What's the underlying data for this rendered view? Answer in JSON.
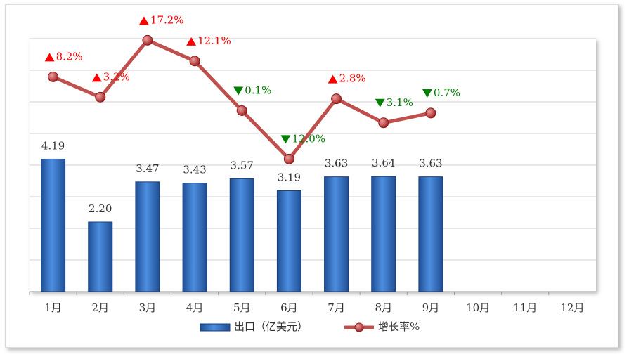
{
  "chart_data": {
    "type": "bar_line",
    "categories": [
      "1月",
      "2月",
      "3月",
      "4月",
      "5月",
      "6月",
      "7月",
      "8月",
      "9月",
      "10月",
      "11月",
      "12月"
    ],
    "series": [
      {
        "name": "出口（亿美元）",
        "type": "bar",
        "color": "#3a78c9",
        "values": [
          4.19,
          2.2,
          3.47,
          3.43,
          3.57,
          3.19,
          3.63,
          3.64,
          3.63,
          null,
          null,
          null
        ],
        "value_labels": [
          "4.19",
          "2.20",
          "3.47",
          "3.43",
          "3.57",
          "3.19",
          "3.63",
          "3.64",
          "3.63",
          null,
          null,
          null
        ]
      },
      {
        "name": "增长率%",
        "type": "line",
        "axis": "y2",
        "color": "#c0504d",
        "values": [
          8.2,
          3.2,
          17.2,
          12.1,
          -0.1,
          -12.0,
          2.8,
          -3.1,
          -0.7,
          null,
          null,
          null
        ],
        "value_labels": [
          "8.2%",
          "3.2%",
          "17.2%",
          "12.1%",
          "0.1%",
          "12.0%",
          "2.8%",
          "3.1%",
          "0.7%",
          null,
          null,
          null
        ]
      }
    ],
    "ylim": [
      0,
      8
    ],
    "yticks": [
      0,
      1,
      2,
      3,
      4,
      5,
      6,
      7,
      8
    ],
    "y2lim": [
      -44.6,
      17.6
    ],
    "grid": true,
    "legend": "bottom",
    "up_color": "#ff0000",
    "down_color": "#008000"
  }
}
